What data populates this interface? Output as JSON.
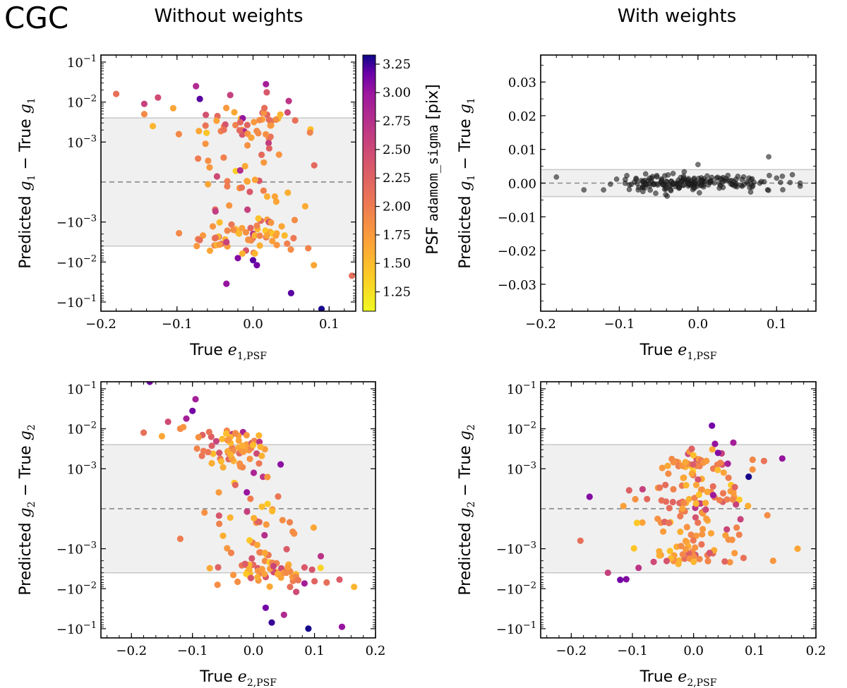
{
  "figure": {
    "label": "CGC",
    "col_titles": [
      "Without weights",
      "With weights"
    ]
  },
  "colors": {
    "band": "#f0f0f0",
    "band_edge": "#c8c8c8",
    "dash": "#888888",
    "black_points": "#222222"
  },
  "colorbar": {
    "label_prefix": "PSF",
    "label_mono": "adamom_sigma",
    "label_suffix": "[pix]",
    "range": [
      1.08,
      3.33
    ],
    "ticks": [
      "1.25",
      "1.50",
      "1.75",
      "2.00",
      "2.25",
      "2.50",
      "2.75",
      "3.00",
      "3.25"
    ],
    "cmap": "plasma_r"
  },
  "chart_data": [
    {
      "id": "tl",
      "type": "scatter",
      "yscale": "symlog",
      "title": "Without weights",
      "xlabel": {
        "prefix": "True",
        "sym": "e",
        "sub": "1,PSF"
      },
      "ylabel": {
        "pre": "Predicted",
        "g": "g",
        "s1": "1",
        "mid": "− True",
        "s2": "1"
      },
      "xlim": [
        -0.2,
        0.135
      ],
      "ylim": [
        -0.17,
        0.15
      ],
      "xticks": [
        -0.2,
        -0.1,
        0.0,
        0.1
      ],
      "xtick_labels": [
        "−0.2",
        "−0.1",
        "0.0",
        "0.1"
      ],
      "ytick_labels": [
        "10−1",
        "10−2",
        "10−3",
        "−10−3",
        "−10−2",
        "−10−1"
      ],
      "band": [
        -0.004,
        0.004
      ],
      "hline": 0,
      "colored": true,
      "outliers": [
        [
          -0.18,
          0.016,
          2.0
        ],
        [
          -0.143,
          0.009,
          2.4
        ],
        [
          -0.143,
          0.005,
          1.8
        ],
        [
          -0.125,
          0.013,
          2.3
        ],
        [
          -0.105,
          0.007,
          1.6
        ],
        [
          -0.075,
          0.025,
          2.6
        ],
        [
          -0.07,
          0.012,
          3.1
        ],
        [
          -0.03,
          0.015,
          2.4
        ],
        [
          0.017,
          0.028,
          2.7
        ],
        [
          0.018,
          0.0175,
          2.2
        ],
        [
          -0.035,
          -0.035,
          2.8
        ],
        [
          0.0,
          -0.009,
          3.1
        ],
        [
          0.005,
          -0.012,
          3.0
        ],
        [
          -0.02,
          -0.008,
          2.9
        ],
        [
          0.05,
          -0.06,
          3.1
        ],
        [
          0.09,
          -0.15,
          3.3
        ],
        [
          0.13,
          -0.022,
          2.0
        ],
        [
          0.08,
          -0.012,
          1.6
        ]
      ],
      "cluster": {
        "n": 150,
        "cx": -0.005,
        "sx": 0.04,
        "sy": 0.003,
        "seed": 11,
        "xmin": -0.18,
        "xmax": 0.13
      }
    },
    {
      "id": "tr",
      "type": "scatter",
      "yscale": "linear",
      "title": "With weights",
      "xlabel": {
        "prefix": "True",
        "sym": "e",
        "sub": "1,PSF"
      },
      "ylabel": {
        "pre": "Predicted",
        "g": "g",
        "s1": "1",
        "mid": "− True",
        "s2": "1"
      },
      "xlim": [
        -0.2,
        0.15
      ],
      "ylim": [
        -0.038,
        0.038
      ],
      "xticks": [
        -0.2,
        -0.1,
        0.0,
        0.1
      ],
      "xtick_labels": [
        "−0.2",
        "−0.1",
        "0.0",
        "0.1"
      ],
      "yticks": [
        0.03,
        0.02,
        0.01,
        0.0,
        -0.01,
        -0.02,
        -0.03
      ],
      "ytick_labels": [
        "0.03",
        "0.02",
        "0.01",
        "0.00",
        "−0.01",
        "−0.02",
        "−0.03"
      ],
      "band": [
        -0.004,
        0.004
      ],
      "hline": 0,
      "colored": false,
      "outliers": [
        [
          -0.18,
          0.0018
        ],
        [
          -0.145,
          -0.002
        ],
        [
          -0.12,
          -0.002
        ],
        [
          -0.07,
          -0.0025
        ],
        [
          0.09,
          0.0078
        ],
        [
          0.0,
          0.0055
        ],
        [
          0.12,
          0.0025
        ],
        [
          0.13,
          0.0
        ],
        [
          0.1,
          0.0015
        ]
      ],
      "cluster": {
        "n": 190,
        "cx": -0.005,
        "sx": 0.05,
        "sy": 0.0012,
        "seed": 7,
        "xmin": -0.15,
        "xmax": 0.13
      }
    },
    {
      "id": "bl",
      "type": "scatter",
      "yscale": "symlog",
      "title": "",
      "xlabel": {
        "prefix": "True",
        "sym": "e",
        "sub": "2,PSF"
      },
      "ylabel": {
        "pre": "Predicted",
        "g": "g",
        "s1": "2",
        "mid": "− True",
        "s2": "2"
      },
      "xlim": [
        -0.25,
        0.2
      ],
      "ylim": [
        -0.17,
        0.15
      ],
      "xticks": [
        -0.2,
        -0.1,
        0.0,
        0.1,
        0.2
      ],
      "xtick_labels": [
        "−0.2",
        "−0.1",
        "0.0",
        "0.1",
        "0.2"
      ],
      "ytick_labels": [
        "10−1",
        "10−2",
        "10−3",
        "−10−3",
        "−10−2",
        "−10−1"
      ],
      "band": [
        -0.004,
        0.004
      ],
      "hline": 0,
      "colored": true,
      "outliers": [
        [
          -0.17,
          0.15,
          3.0
        ],
        [
          -0.18,
          0.008,
          2.0
        ],
        [
          -0.15,
          0.0065,
          1.6
        ],
        [
          -0.14,
          0.015,
          2.3
        ],
        [
          -0.12,
          0.01,
          1.8
        ],
        [
          -0.115,
          0.011,
          1.7
        ],
        [
          -0.1,
          0.028,
          3.0
        ],
        [
          -0.095,
          0.055,
          2.7
        ],
        [
          -0.11,
          0.018,
          2.7
        ],
        [
          0.02,
          -0.03,
          3.0
        ],
        [
          0.03,
          -0.07,
          3.2
        ],
        [
          0.05,
          -0.045,
          2.6
        ],
        [
          0.09,
          -0.1,
          3.3
        ],
        [
          0.145,
          -0.09,
          2.8
        ],
        [
          0.165,
          -0.009,
          1.5
        ],
        [
          0.12,
          -0.007,
          2.0
        ],
        [
          0.1,
          -0.0065,
          2.1
        ],
        [
          0.07,
          -0.012,
          2.3
        ],
        [
          0.06,
          -0.009,
          2.0
        ],
        [
          0.11,
          -0.003,
          1.3
        ]
      ],
      "cluster": {
        "n": 160,
        "cx": 0.0,
        "sx": 0.045,
        "sy": 0.003,
        "seed": 23,
        "xmin": -0.12,
        "xmax": 0.15,
        "slope": -0.05
      }
    },
    {
      "id": "br",
      "type": "scatter",
      "yscale": "symlog",
      "title": "",
      "xlabel": {
        "prefix": "True",
        "sym": "e",
        "sub": "2,PSF"
      },
      "ylabel": {
        "pre": "Predicted",
        "g": "g",
        "s1": "2",
        "mid": "− True",
        "s2": "2"
      },
      "xlim": [
        -0.25,
        0.2
      ],
      "ylim": [
        -0.17,
        0.15
      ],
      "xticks": [
        -0.2,
        -0.1,
        0.0,
        0.1,
        0.2
      ],
      "xtick_labels": [
        "−0.2",
        "−0.1",
        "0.0",
        "0.1",
        "0.2"
      ],
      "ytick_labels": [
        "10−1",
        "10−2",
        "10−3",
        "−10−3",
        "−10−2",
        "−10−1"
      ],
      "band": [
        -0.004,
        0.004
      ],
      "hline": 0,
      "colored": true,
      "outliers": [
        [
          0.03,
          0.012,
          3.0
        ],
        [
          0.065,
          0.0045,
          2.7
        ],
        [
          0.035,
          0.0042,
          2.8
        ],
        [
          0.04,
          0.0025,
          2.9
        ],
        [
          0.145,
          0.0018,
          2.8
        ],
        [
          0.09,
          0.0008,
          3.3
        ],
        [
          -0.17,
          0.0003,
          2.9
        ],
        [
          -0.12,
          -0.006,
          3.0
        ],
        [
          -0.11,
          -0.0058,
          2.9
        ],
        [
          -0.14,
          -0.004,
          2.4
        ],
        [
          -0.09,
          -0.003,
          2.5
        ],
        [
          -0.185,
          -0.0008,
          2.0
        ],
        [
          0.17,
          -0.001,
          1.6
        ],
        [
          0.13,
          -0.002,
          1.7
        ]
      ],
      "cluster": {
        "n": 170,
        "cx": 0.0,
        "sx": 0.045,
        "sy": 0.0012,
        "seed": 41,
        "xmin": -0.15,
        "xmax": 0.14
      }
    }
  ]
}
